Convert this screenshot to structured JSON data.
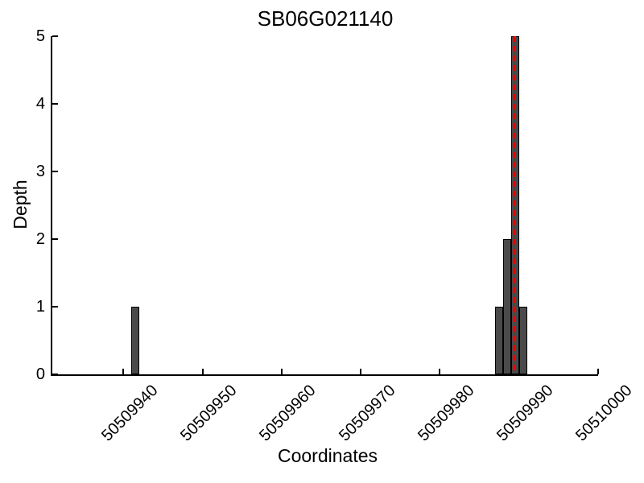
{
  "chart_data": {
    "type": "bar",
    "title": "SB06G021140",
    "xlabel": "Coordinates",
    "ylabel": "Depth",
    "xlim": [
      50509931,
      50510000
    ],
    "ylim": [
      0,
      5
    ],
    "x_ticks": [
      50509940,
      50509950,
      50509960,
      50509970,
      50509980,
      50509990,
      50510000
    ],
    "y_ticks": [
      0,
      1,
      2,
      3,
      4,
      5
    ],
    "bar_width": 1,
    "bars": [
      {
        "x": 50509941,
        "depth": 1
      },
      {
        "x": 50509987,
        "depth": 1
      },
      {
        "x": 50509988,
        "depth": 2
      },
      {
        "x": 50509989,
        "depth": 5
      },
      {
        "x": 50509990,
        "depth": 1
      }
    ],
    "marker_line": {
      "x": 50509989.5,
      "style": "dashed",
      "color": "#e60000"
    },
    "legend": null,
    "grid": false,
    "colors": {
      "bar_fill": "#4a4a4a",
      "bar_edge": "#000000",
      "axis": "#000000",
      "background": "#ffffff"
    }
  }
}
